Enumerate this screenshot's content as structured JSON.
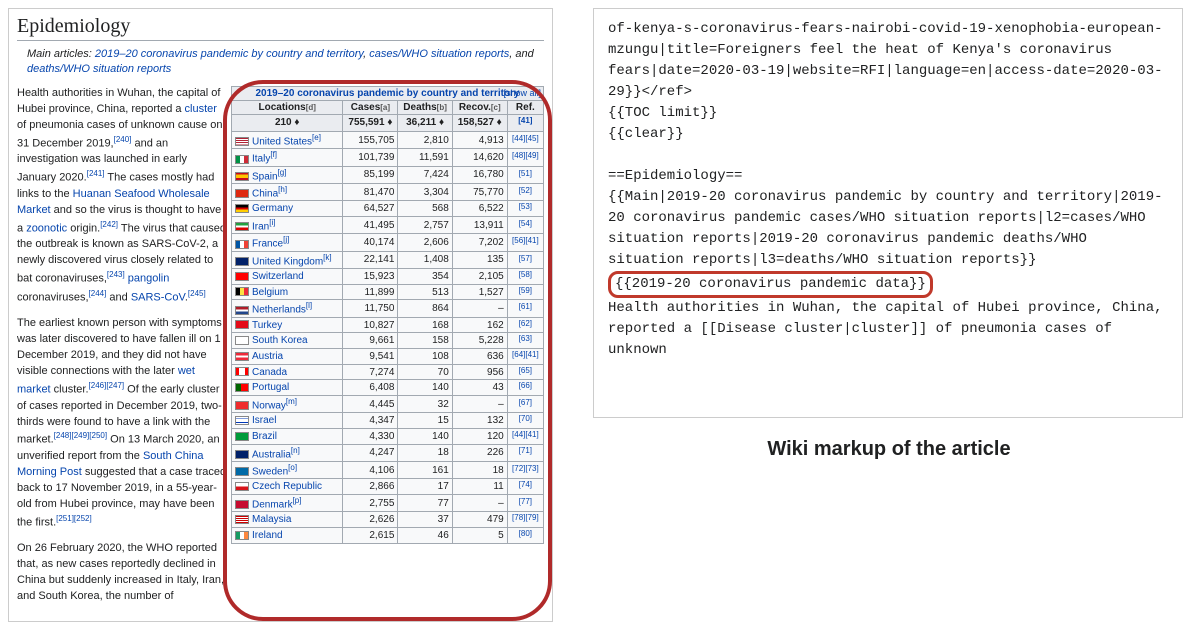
{
  "colors": {
    "link": "#0645ad",
    "ring": "#b02a2a",
    "th_bg": "#eaecf0",
    "td_bg": "#f8f9fa",
    "border": "#a2a9b1"
  },
  "section_heading": "Epidemiology",
  "main_articles": {
    "prefix": "Main articles: ",
    "links": [
      "2019–20 coronavirus pandemic by country and territory",
      "cases/WHO situation reports",
      "deaths/WHO situation reports"
    ],
    "and": ", and "
  },
  "paragraphs": {
    "p1_a": "Health authorities in Wuhan, the capital of Hubei province, China, reported a ",
    "p1_cluster": "cluster",
    "p1_b": " of pneumonia cases of unknown cause on 31 December 2019,",
    "p1_ref1": "[240]",
    "p1_c": " and an investigation was launched in early January 2020.",
    "p1_ref2": "[241]",
    "p1_d": " The cases mostly had links to the ",
    "p1_link_hs": "Huanan Seafood Wholesale Market",
    "p1_e": " and so the virus is thought to have a ",
    "p1_link_zoo": "zoonotic",
    "p1_f": " origin.",
    "p1_ref3": "[242]",
    "p1_g": " The virus that caused the outbreak is known as SARS-CoV-2, a newly discovered virus closely related to bat coronaviruses,",
    "p1_ref4": "[243]",
    "p1_link_pangolin": "pangolin",
    "p1_h": " coronaviruses,",
    "p1_ref5": "[244]",
    "p1_i": " and ",
    "p1_link_sarscov": "SARS-CoV",
    "p1_j": ".",
    "p1_ref6": "[245]",
    "p2_a": "The earliest known person with symptoms was later discovered to have fallen ill on 1 December 2019, and they did not have visible connections with the later ",
    "p2_link_wet": "wet market",
    "p2_b": " cluster.",
    "p2_ref1": "[246][247]",
    "p2_c": " Of the early cluster of cases reported in December 2019, two-thirds were found to have a link with the market.",
    "p2_ref2": "[248][249][250]",
    "p2_d": " On 13 March 2020, an unverified report from the ",
    "p2_link_scmp": "South China Morning Post",
    "p2_e": " suggested that a case traced back to 17 November 2019, in a 55-year-old from Hubei province, may have been the first.",
    "p2_ref3": "[251][252]",
    "p3_a": "On 26 February 2020, the WHO reported that, as new cases reportedly declined in China but suddenly increased in Italy, Iran, and South Korea, the number of"
  },
  "table": {
    "title": "2019–20 coronavirus pandemic by country and territory",
    "showall": "[show all]",
    "headers": [
      "Locations",
      "Cases",
      "Deaths",
      "Recov.",
      "Ref."
    ],
    "sort_cases": "[a]",
    "sort_deaths": "[b]",
    "sort_recov": "[c]",
    "sort_loc": "[d]",
    "totals": {
      "loc": "210",
      "cases": "755,591",
      "deaths": "36,211",
      "recov": "158,527",
      "ref": "[41]"
    },
    "rows": [
      {
        "flag": "us",
        "loc": "United States",
        "note": "[e]",
        "cases": "155,705",
        "deaths": "2,810",
        "recov": "4,913",
        "ref": "[44][45]"
      },
      {
        "flag": "it",
        "loc": "Italy",
        "note": "[f]",
        "cases": "101,739",
        "deaths": "11,591",
        "recov": "14,620",
        "ref": "[48][49]"
      },
      {
        "flag": "es",
        "loc": "Spain",
        "note": "[g]",
        "cases": "85,199",
        "deaths": "7,424",
        "recov": "16,780",
        "ref": "[51]"
      },
      {
        "flag": "cn",
        "loc": "China",
        "note": "[h]",
        "cases": "81,470",
        "deaths": "3,304",
        "recov": "75,770",
        "ref": "[52]"
      },
      {
        "flag": "de",
        "loc": "Germany",
        "note": "",
        "cases": "64,527",
        "deaths": "568",
        "recov": "6,522",
        "ref": "[53]"
      },
      {
        "flag": "ir",
        "loc": "Iran",
        "note": "[i]",
        "cases": "41,495",
        "deaths": "2,757",
        "recov": "13,911",
        "ref": "[54]"
      },
      {
        "flag": "fr",
        "loc": "France",
        "note": "[j]",
        "cases": "40,174",
        "deaths": "2,606",
        "recov": "7,202",
        "ref": "[56][41]"
      },
      {
        "flag": "gb",
        "loc": "United Kingdom",
        "note": "[k]",
        "cases": "22,141",
        "deaths": "1,408",
        "recov": "135",
        "ref": "[57]"
      },
      {
        "flag": "ch",
        "loc": "Switzerland",
        "note": "",
        "cases": "15,923",
        "deaths": "354",
        "recov": "2,105",
        "ref": "[58]"
      },
      {
        "flag": "be",
        "loc": "Belgium",
        "note": "",
        "cases": "11,899",
        "deaths": "513",
        "recov": "1,527",
        "ref": "[59]"
      },
      {
        "flag": "nl",
        "loc": "Netherlands",
        "note": "[l]",
        "cases": "11,750",
        "deaths": "864",
        "recov": "–",
        "ref": "[61]"
      },
      {
        "flag": "tr",
        "loc": "Turkey",
        "note": "",
        "cases": "10,827",
        "deaths": "168",
        "recov": "162",
        "ref": "[62]"
      },
      {
        "flag": "kr",
        "loc": "South Korea",
        "note": "",
        "cases": "9,661",
        "deaths": "158",
        "recov": "5,228",
        "ref": "[63]"
      },
      {
        "flag": "at",
        "loc": "Austria",
        "note": "",
        "cases": "9,541",
        "deaths": "108",
        "recov": "636",
        "ref": "[64][41]"
      },
      {
        "flag": "ca",
        "loc": "Canada",
        "note": "",
        "cases": "7,274",
        "deaths": "70",
        "recov": "956",
        "ref": "[65]"
      },
      {
        "flag": "pt",
        "loc": "Portugal",
        "note": "",
        "cases": "6,408",
        "deaths": "140",
        "recov": "43",
        "ref": "[66]"
      },
      {
        "flag": "no",
        "loc": "Norway",
        "note": "[m]",
        "cases": "4,445",
        "deaths": "32",
        "recov": "–",
        "ref": "[67]"
      },
      {
        "flag": "il",
        "loc": "Israel",
        "note": "",
        "cases": "4,347",
        "deaths": "15",
        "recov": "132",
        "ref": "[70]"
      },
      {
        "flag": "br",
        "loc": "Brazil",
        "note": "",
        "cases": "4,330",
        "deaths": "140",
        "recov": "120",
        "ref": "[44][41]"
      },
      {
        "flag": "au",
        "loc": "Australia",
        "note": "[n]",
        "cases": "4,247",
        "deaths": "18",
        "recov": "226",
        "ref": "[71]"
      },
      {
        "flag": "se",
        "loc": "Sweden",
        "note": "[o]",
        "cases": "4,106",
        "deaths": "161",
        "recov": "18",
        "ref": "[72][73]"
      },
      {
        "flag": "cz",
        "loc": "Czech Republic",
        "note": "",
        "cases": "2,866",
        "deaths": "17",
        "recov": "11",
        "ref": "[74]"
      },
      {
        "flag": "dk",
        "loc": "Denmark",
        "note": "[p]",
        "cases": "2,755",
        "deaths": "77",
        "recov": "–",
        "ref": "[77]"
      },
      {
        "flag": "my",
        "loc": "Malaysia",
        "note": "",
        "cases": "2,626",
        "deaths": "37",
        "recov": "479",
        "ref": "[78][79]"
      },
      {
        "flag": "ie",
        "loc": "Ireland",
        "note": "",
        "cases": "2,615",
        "deaths": "46",
        "recov": "5",
        "ref": "[80]"
      }
    ]
  },
  "flags": {
    "us": "linear-gradient(#b22234 0 15%,#fff 15% 30%,#b22234 30% 45%,#fff 45% 60%,#b22234 60% 75%,#fff 75% 90%,#b22234 90% 100%)",
    "it": "linear-gradient(90deg,#009246 0 33%,#fff 33% 66%,#ce2b37 66% 100%)",
    "es": "linear-gradient(#c60b1e 0 25%,#ffc400 25% 75%,#c60b1e 75% 100%)",
    "cn": "#de2910",
    "de": "linear-gradient(#000 0 33%,#dd0000 33% 66%,#ffce00 66% 100%)",
    "ir": "linear-gradient(#239f40 0 33%,#fff 33% 66%,#da0000 66% 100%)",
    "fr": "linear-gradient(90deg,#0055a4 0 33%,#fff 33% 66%,#ef4135 66% 100%)",
    "gb": "#012169",
    "ch": "#ff0000",
    "be": "linear-gradient(90deg,#000 0 33%,#fae042 33% 66%,#ed2939 66% 100%)",
    "nl": "linear-gradient(#ae1c28 0 33%,#fff 33% 66%,#21468b 66% 100%)",
    "tr": "#e30a17",
    "kr": "#ffffff",
    "at": "linear-gradient(#ed2939 0 33%,#fff 33% 66%,#ed2939 66% 100%)",
    "ca": "linear-gradient(90deg,#ff0000 0 25%,#fff 25% 75%,#ff0000 75% 100%)",
    "pt": "linear-gradient(90deg,#006600 0 40%,#ff0000 40% 100%)",
    "no": "#ef2b2d",
    "il": "linear-gradient(#fff 0 15%,#0038b8 15% 25%,#fff 25% 75%,#0038b8 75% 85%,#fff 85% 100%)",
    "br": "#009b3a",
    "au": "#012169",
    "se": "#006aa7",
    "cz": "linear-gradient(#fff 0 50%,#d7141a 50% 100%)",
    "dk": "#c60c30",
    "my": "linear-gradient(#cc0001 0 14%,#fff 14% 28%,#cc0001 28% 42%,#fff 42% 56%,#cc0001 56% 70%,#fff 70% 84%,#cc0001 84% 100%)",
    "ie": "linear-gradient(90deg,#169b62 0 33%,#fff 33% 66%,#ff883e 66% 100%)"
  },
  "markup": {
    "line1": "of-kenya-s-coronavirus-fears-nairobi-covid-19-xenophobia-european-mzungu|title=Foreigners feel the heat of Kenya's coronavirus fears|date=2020-03-19|website=RFI|language=en|access-date=2020-03-29}}</ref>",
    "toc": "{{TOC limit}}",
    "clear": "{{clear}}",
    "heading": "==Epidemiology==",
    "main_tpl": "{{Main|2019-20 coronavirus pandemic by country and territory|2019-20 coronavirus pandemic cases/WHO situation reports|l2=cases/WHO situation reports|2019-20 coronavirus pandemic deaths/WHO situation reports|l3=deaths/WHO situation reports}}",
    "highlighted": "{{2019-20 coronavirus pandemic data}}",
    "after": "Health authorities in Wuhan, the capital of Hubei province, China, reported a [[Disease cluster|cluster]] of pneumonia cases of unknown"
  },
  "caption": "Wiki markup of the article"
}
